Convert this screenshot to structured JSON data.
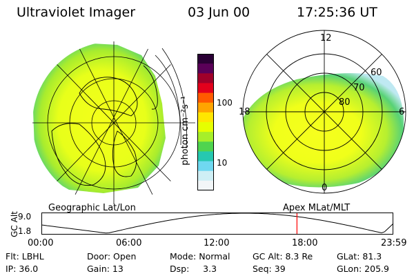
{
  "header": {
    "instrument": "Ultraviolet Imager",
    "date": "03 Jun 00",
    "time": "17:25:36 UT"
  },
  "left_panel": {
    "caption": "Geographic Lat/Lon"
  },
  "right_panel": {
    "caption": "Apex MLat/MLT",
    "mlt_labels": {
      "top": "12",
      "left": "18",
      "right": "6",
      "bottom": "0"
    },
    "lat_labels": [
      "60",
      "70",
      "80"
    ]
  },
  "colorbar": {
    "unit": "photon cm⁻²s⁻¹",
    "ticks": [
      "100",
      "10"
    ],
    "colors": [
      "#2a0035",
      "#5a0058",
      "#a0002a",
      "#e3001c",
      "#ff5a00",
      "#ffa500",
      "#ffe600",
      "#e6ff00",
      "#a6ef2a",
      "#4fd44f",
      "#26c8b0",
      "#6fd8f0",
      "#cfeff5",
      "#f2f6f8"
    ]
  },
  "timeline": {
    "axis_label": "GC Alt",
    "y_ticks": [
      "9.0",
      "1.8"
    ],
    "x_ticks": [
      "00:00",
      "06:00",
      "12:00",
      "18:00",
      "23:59"
    ],
    "marker_hour": 17.43
  },
  "footer": {
    "row1": {
      "flt": "Flt: LBHL",
      "door": "Door: Open",
      "mode": "Mode: Normal",
      "gcalt": "GC Alt: 8.3 Re",
      "glat": "GLat:  81.3"
    },
    "row2": {
      "ip": "IP: 36.0",
      "gain": "Gain: 13",
      "dsp": "Dsp:     3.3",
      "seq": "Seq: 39",
      "glon": "GLon: 205.9"
    }
  }
}
